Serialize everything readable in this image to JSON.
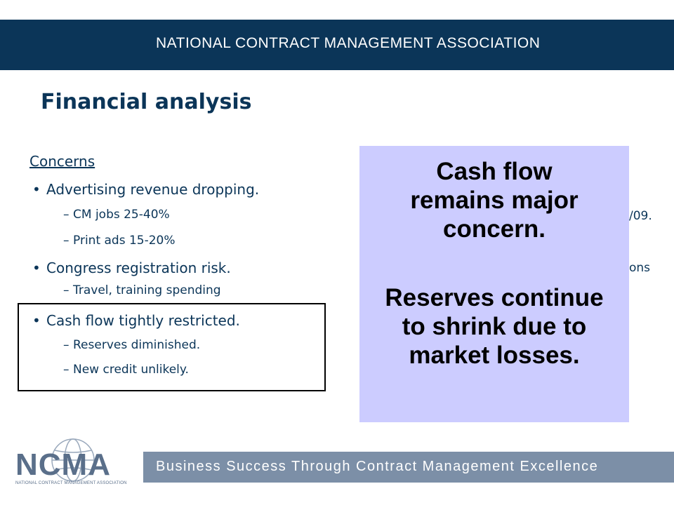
{
  "header": {
    "org_name": "NATIONAL CONTRACT MANAGEMENT ASSOCIATION"
  },
  "slide": {
    "title": "Financial analysis",
    "concerns_heading": "Concerns",
    "bullets": [
      {
        "text": "Advertising revenue dropping.",
        "subs": [
          "CM jobs 25-40%",
          "Print ads 15-20%"
        ]
      },
      {
        "text": "Congress registration risk.",
        "subs": [
          "Travel, training spending"
        ]
      },
      {
        "text": "Cash flow tightly restricted.",
        "subs": [
          "Reserves diminished.",
          "New credit unlikely."
        ]
      }
    ],
    "partial_right": [
      "/09.",
      "ons"
    ]
  },
  "callout": {
    "line1": "Cash flow remains major concern.",
    "line2": "Reserves continue to shrink due to market losses.",
    "background": "#ccccff"
  },
  "logo": {
    "text": "NCMA",
    "subtitle": "NATIONAL CONTRACT MANAGEMENT ASSOCIATION"
  },
  "footer": {
    "tagline": "Business Success Through Contract Management Excellence"
  },
  "colors": {
    "navy": "#0b3558",
    "footer_band": "#7c8fa7"
  }
}
